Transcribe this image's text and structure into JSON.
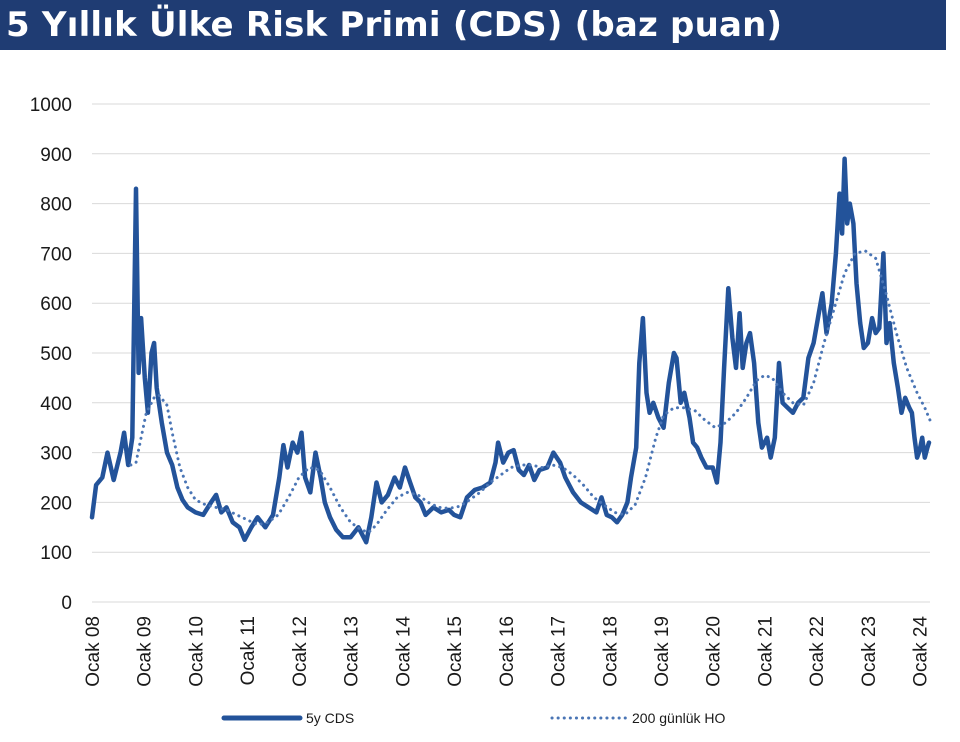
{
  "title": "5 Yıllık Ülke Risk Primi (CDS) (baz puan)",
  "colors": {
    "title_bg": "#1f3c73",
    "title_text": "#ffffff",
    "series_solid": "#23539a",
    "series_dotted": "#4a75b5",
    "grid": "#d9d9d9"
  },
  "chart_data": {
    "type": "line",
    "title": "5 Yıllık Ülke Risk Primi (CDS) (baz puan)",
    "xlabel": "",
    "ylabel": "",
    "ylim": [
      0,
      1000
    ],
    "xlim": [
      2008.0,
      2024.2
    ],
    "grid": true,
    "legend": "bottom",
    "y_ticks": [
      "0",
      "100",
      "200",
      "300",
      "400",
      "500",
      "600",
      "700",
      "800",
      "900",
      "1000"
    ],
    "x_ticks": [
      "Ocak 08",
      "Ocak 09",
      "Ocak 10",
      "Ocak 11",
      "Ocak 12",
      "Ocak 13",
      "Ocak 14",
      "Ocak 15",
      "Ocak 16",
      "Ocak 17",
      "Ocak 18",
      "Ocak 19",
      "Ocak 20",
      "Ocak 21",
      "Ocak 22",
      "Ocak 23",
      "Ocak 24"
    ],
    "series": [
      {
        "name": "5y CDS",
        "style": "solid",
        "points": [
          [
            2008.0,
            170
          ],
          [
            2008.08,
            235
          ],
          [
            2008.2,
            250
          ],
          [
            2008.3,
            300
          ],
          [
            2008.42,
            245
          ],
          [
            2008.55,
            300
          ],
          [
            2008.62,
            340
          ],
          [
            2008.7,
            275
          ],
          [
            2008.78,
            330
          ],
          [
            2008.85,
            830
          ],
          [
            2008.9,
            460
          ],
          [
            2008.95,
            570
          ],
          [
            2009.02,
            450
          ],
          [
            2009.08,
            380
          ],
          [
            2009.15,
            500
          ],
          [
            2009.2,
            520
          ],
          [
            2009.25,
            430
          ],
          [
            2009.35,
            360
          ],
          [
            2009.45,
            300
          ],
          [
            2009.55,
            275
          ],
          [
            2009.65,
            230
          ],
          [
            2009.75,
            205
          ],
          [
            2009.85,
            190
          ],
          [
            2010.0,
            180
          ],
          [
            2010.15,
            175
          ],
          [
            2010.3,
            200
          ],
          [
            2010.4,
            215
          ],
          [
            2010.5,
            180
          ],
          [
            2010.6,
            190
          ],
          [
            2010.72,
            160
          ],
          [
            2010.85,
            150
          ],
          [
            2010.95,
            125
          ],
          [
            2011.08,
            150
          ],
          [
            2011.2,
            170
          ],
          [
            2011.35,
            150
          ],
          [
            2011.5,
            175
          ],
          [
            2011.62,
            250
          ],
          [
            2011.7,
            315
          ],
          [
            2011.78,
            270
          ],
          [
            2011.88,
            320
          ],
          [
            2011.97,
            300
          ],
          [
            2012.05,
            340
          ],
          [
            2012.12,
            250
          ],
          [
            2012.22,
            220
          ],
          [
            2012.32,
            300
          ],
          [
            2012.42,
            250
          ],
          [
            2012.5,
            200
          ],
          [
            2012.6,
            170
          ],
          [
            2012.72,
            145
          ],
          [
            2012.85,
            130
          ],
          [
            2013.0,
            130
          ],
          [
            2013.15,
            150
          ],
          [
            2013.3,
            120
          ],
          [
            2013.4,
            170
          ],
          [
            2013.5,
            240
          ],
          [
            2013.6,
            200
          ],
          [
            2013.72,
            215
          ],
          [
            2013.85,
            250
          ],
          [
            2013.95,
            230
          ],
          [
            2014.05,
            270
          ],
          [
            2014.15,
            240
          ],
          [
            2014.25,
            210
          ],
          [
            2014.35,
            200
          ],
          [
            2014.45,
            175
          ],
          [
            2014.6,
            190
          ],
          [
            2014.75,
            180
          ],
          [
            2014.9,
            185
          ],
          [
            2015.0,
            175
          ],
          [
            2015.12,
            170
          ],
          [
            2015.25,
            210
          ],
          [
            2015.4,
            225
          ],
          [
            2015.55,
            230
          ],
          [
            2015.7,
            240
          ],
          [
            2015.8,
            280
          ],
          [
            2015.85,
            320
          ],
          [
            2015.95,
            280
          ],
          [
            2016.05,
            300
          ],
          [
            2016.15,
            305
          ],
          [
            2016.25,
            265
          ],
          [
            2016.35,
            255
          ],
          [
            2016.45,
            275
          ],
          [
            2016.55,
            245
          ],
          [
            2016.65,
            265
          ],
          [
            2016.8,
            270
          ],
          [
            2016.92,
            300
          ],
          [
            2017.05,
            280
          ],
          [
            2017.15,
            250
          ],
          [
            2017.3,
            220
          ],
          [
            2017.45,
            200
          ],
          [
            2017.6,
            190
          ],
          [
            2017.75,
            180
          ],
          [
            2017.85,
            210
          ],
          [
            2017.95,
            175
          ],
          [
            2018.05,
            170
          ],
          [
            2018.15,
            160
          ],
          [
            2018.25,
            175
          ],
          [
            2018.35,
            200
          ],
          [
            2018.42,
            250
          ],
          [
            2018.52,
            310
          ],
          [
            2018.58,
            480
          ],
          [
            2018.65,
            570
          ],
          [
            2018.72,
            420
          ],
          [
            2018.78,
            380
          ],
          [
            2018.85,
            400
          ],
          [
            2018.95,
            370
          ],
          [
            2019.05,
            350
          ],
          [
            2019.15,
            440
          ],
          [
            2019.25,
            500
          ],
          [
            2019.3,
            490
          ],
          [
            2019.38,
            400
          ],
          [
            2019.45,
            420
          ],
          [
            2019.55,
            370
          ],
          [
            2019.62,
            320
          ],
          [
            2019.7,
            310
          ],
          [
            2019.78,
            290
          ],
          [
            2019.88,
            270
          ],
          [
            2020.0,
            270
          ],
          [
            2020.08,
            240
          ],
          [
            2020.15,
            320
          ],
          [
            2020.22,
            470
          ],
          [
            2020.3,
            630
          ],
          [
            2020.38,
            530
          ],
          [
            2020.45,
            470
          ],
          [
            2020.52,
            580
          ],
          [
            2020.58,
            470
          ],
          [
            2020.65,
            520
          ],
          [
            2020.72,
            540
          ],
          [
            2020.8,
            480
          ],
          [
            2020.88,
            360
          ],
          [
            2020.95,
            310
          ],
          [
            2021.05,
            330
          ],
          [
            2021.12,
            290
          ],
          [
            2021.2,
            330
          ],
          [
            2021.28,
            480
          ],
          [
            2021.35,
            400
          ],
          [
            2021.45,
            390
          ],
          [
            2021.55,
            380
          ],
          [
            2021.65,
            400
          ],
          [
            2021.75,
            410
          ],
          [
            2021.85,
            490
          ],
          [
            2021.95,
            520
          ],
          [
            2022.05,
            580
          ],
          [
            2022.12,
            620
          ],
          [
            2022.2,
            540
          ],
          [
            2022.3,
            600
          ],
          [
            2022.38,
            700
          ],
          [
            2022.45,
            820
          ],
          [
            2022.5,
            740
          ],
          [
            2022.55,
            890
          ],
          [
            2022.6,
            760
          ],
          [
            2022.65,
            800
          ],
          [
            2022.72,
            760
          ],
          [
            2022.78,
            640
          ],
          [
            2022.85,
            560
          ],
          [
            2022.92,
            510
          ],
          [
            2023.0,
            520
          ],
          [
            2023.08,
            570
          ],
          [
            2023.15,
            540
          ],
          [
            2023.22,
            550
          ],
          [
            2023.3,
            700
          ],
          [
            2023.36,
            520
          ],
          [
            2023.42,
            560
          ],
          [
            2023.5,
            480
          ],
          [
            2023.58,
            430
          ],
          [
            2023.65,
            380
          ],
          [
            2023.72,
            410
          ],
          [
            2023.8,
            390
          ],
          [
            2023.85,
            380
          ],
          [
            2023.9,
            330
          ],
          [
            2023.95,
            290
          ],
          [
            2024.0,
            305
          ],
          [
            2024.05,
            330
          ],
          [
            2024.1,
            290
          ],
          [
            2024.15,
            310
          ],
          [
            2024.18,
            320
          ]
        ]
      },
      {
        "name": "200 günlük HO",
        "style": "dotted",
        "points": [
          [
            2008.75,
            275
          ],
          [
            2008.85,
            280
          ],
          [
            2008.95,
            330
          ],
          [
            2009.05,
            380
          ],
          [
            2009.2,
            410
          ],
          [
            2009.3,
            415
          ],
          [
            2009.45,
            395
          ],
          [
            2009.55,
            340
          ],
          [
            2009.7,
            270
          ],
          [
            2009.85,
            230
          ],
          [
            2010.0,
            205
          ],
          [
            2010.2,
            195
          ],
          [
            2010.4,
            190
          ],
          [
            2010.6,
            185
          ],
          [
            2010.8,
            175
          ],
          [
            2011.0,
            165
          ],
          [
            2011.2,
            155
          ],
          [
            2011.4,
            160
          ],
          [
            2011.6,
            175
          ],
          [
            2011.8,
            210
          ],
          [
            2012.0,
            250
          ],
          [
            2012.2,
            270
          ],
          [
            2012.4,
            265
          ],
          [
            2012.6,
            230
          ],
          [
            2012.8,
            190
          ],
          [
            2013.0,
            160
          ],
          [
            2013.2,
            145
          ],
          [
            2013.35,
            140
          ],
          [
            2013.5,
            155
          ],
          [
            2013.7,
            185
          ],
          [
            2013.9,
            210
          ],
          [
            2014.1,
            220
          ],
          [
            2014.3,
            215
          ],
          [
            2014.5,
            200
          ],
          [
            2014.7,
            190
          ],
          [
            2014.9,
            188
          ],
          [
            2015.1,
            192
          ],
          [
            2015.3,
            205
          ],
          [
            2015.5,
            220
          ],
          [
            2015.7,
            240
          ],
          [
            2015.9,
            255
          ],
          [
            2016.1,
            270
          ],
          [
            2016.3,
            275
          ],
          [
            2016.5,
            275
          ],
          [
            2016.7,
            270
          ],
          [
            2016.9,
            275
          ],
          [
            2017.1,
            270
          ],
          [
            2017.3,
            255
          ],
          [
            2017.5,
            235
          ],
          [
            2017.7,
            210
          ],
          [
            2017.9,
            195
          ],
          [
            2018.1,
            180
          ],
          [
            2018.3,
            175
          ],
          [
            2018.5,
            195
          ],
          [
            2018.7,
            250
          ],
          [
            2018.9,
            330
          ],
          [
            2019.05,
            375
          ],
          [
            2019.25,
            390
          ],
          [
            2019.45,
            390
          ],
          [
            2019.65,
            385
          ],
          [
            2019.85,
            365
          ],
          [
            2020.05,
            350
          ],
          [
            2020.25,
            360
          ],
          [
            2020.45,
            380
          ],
          [
            2020.65,
            410
          ],
          [
            2020.85,
            445
          ],
          [
            2021.0,
            455
          ],
          [
            2021.15,
            450
          ],
          [
            2021.35,
            420
          ],
          [
            2021.55,
            400
          ],
          [
            2021.75,
            395
          ],
          [
            2021.95,
            440
          ],
          [
            2022.15,
            520
          ],
          [
            2022.35,
            590
          ],
          [
            2022.55,
            660
          ],
          [
            2022.75,
            700
          ],
          [
            2022.95,
            705
          ],
          [
            2023.15,
            690
          ],
          [
            2023.35,
            620
          ],
          [
            2023.55,
            540
          ],
          [
            2023.75,
            470
          ],
          [
            2023.95,
            420
          ],
          [
            2024.1,
            390
          ],
          [
            2024.2,
            365
          ]
        ]
      }
    ]
  }
}
